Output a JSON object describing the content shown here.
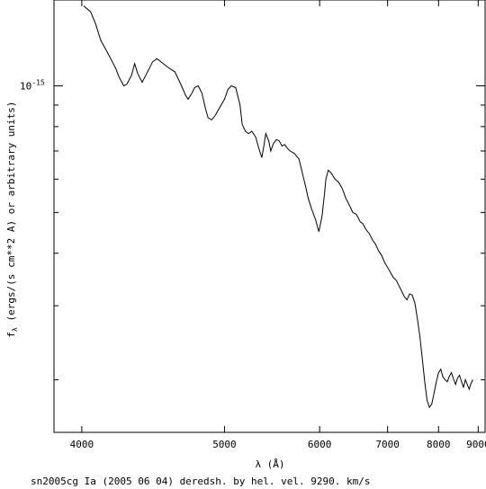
{
  "chart_data": {
    "type": "line",
    "title": "sn2005cg Ia (2005 06 04) deredsh. by hel. vel.  9290. km/s",
    "xlabel": "λ (Å)",
    "ylabel": "f_λ (ergs/(s cm**2 A) or arbitrary units)",
    "x_scale": "reciprocal",
    "y_scale": "log",
    "xlim": [
      3850,
      9200
    ],
    "ylim": [
      1.5e-16,
      1.6e-15
    ],
    "x_ticks": [
      {
        "value": 4000,
        "label": "4000"
      },
      {
        "value": 5000,
        "label": "5000"
      },
      {
        "value": 6000,
        "label": "6000"
      },
      {
        "value": 7000,
        "label": "7000"
      },
      {
        "value": 8000,
        "label": "8000"
      },
      {
        "value": 9000,
        "label": "9000"
      }
    ],
    "y_major_ticks": [
      {
        "value": 1e-15,
        "label": "10^-15"
      }
    ],
    "y_minor_ticks": [
      2e-16,
      3e-16,
      4e-16,
      5e-16,
      6e-16,
      7e-16,
      8e-16,
      9e-16
    ],
    "grid": false,
    "series": [
      {
        "name": "",
        "color": "#000000",
        "x": [
          4010,
          4050,
          4080,
          4110,
          4150,
          4200,
          4220,
          4250,
          4270,
          4300,
          4320,
          4340,
          4370,
          4400,
          4440,
          4470,
          4500,
          4530,
          4560,
          4600,
          4650,
          4680,
          4700,
          4730,
          4750,
          4780,
          4810,
          4840,
          4860,
          4890,
          4920,
          4960,
          5000,
          5030,
          5060,
          5100,
          5140,
          5160,
          5190,
          5220,
          5250,
          5290,
          5320,
          5350,
          5370,
          5390,
          5420,
          5440,
          5470,
          5500,
          5530,
          5560,
          5590,
          5620,
          5650,
          5700,
          5750,
          5790,
          5830,
          5860,
          5900,
          5950,
          5990,
          6030,
          6060,
          6080,
          6110,
          6150,
          6200,
          6250,
          6300,
          6350,
          6400,
          6450,
          6500,
          6530,
          6560,
          6600,
          6650,
          6700,
          6750,
          6800,
          6850,
          6900,
          6950,
          7000,
          7050,
          7100,
          7150,
          7200,
          7250,
          7300,
          7350,
          7400,
          7450,
          7500,
          7550,
          7600,
          7650,
          7700,
          7750,
          7800,
          7850,
          7900,
          7950,
          8000,
          8050,
          8100,
          8150,
          8200,
          8250,
          8300,
          8350,
          8400,
          8450,
          8500,
          8550,
          8600,
          8650,
          8700,
          8750,
          8800,
          8850
        ],
        "y": [
          1.55e-15,
          1.5e-15,
          1.4e-15,
          1.28e-15,
          1.2e-15,
          1.1e-15,
          1.05e-15,
          1e-15,
          1.01e-15,
          1.06e-15,
          1.13e-15,
          1.07e-15,
          1.02e-15,
          1.07e-15,
          1.14e-15,
          1.16e-15,
          1.14e-15,
          1.12e-15,
          1.1e-15,
          1.08e-15,
          1e-15,
          9.5e-16,
          9.3e-16,
          9.6e-16,
          9.9e-16,
          1e-15,
          9.6e-16,
          8.8e-16,
          8.4e-16,
          8.3e-16,
          8.5e-16,
          8.9e-16,
          9.3e-16,
          9.8e-16,
          1e-15,
          9.9e-16,
          9e-16,
          8.1e-16,
          7.8e-16,
          7.7e-16,
          7.8e-16,
          7.55e-16,
          7.1e-16,
          6.75e-16,
          7.2e-16,
          7.7e-16,
          7.4e-16,
          7e-16,
          7.3e-16,
          7.45e-16,
          7.4e-16,
          7.2e-16,
          7.25e-16,
          7.1e-16,
          7e-16,
          6.9e-16,
          6.7e-16,
          6.2e-16,
          5.75e-16,
          5.4e-16,
          5.1e-16,
          4.8e-16,
          4.5e-16,
          4.9e-16,
          5.5e-16,
          6e-16,
          6.3e-16,
          6.2e-16,
          6e-16,
          5.9e-16,
          5.7e-16,
          5.4e-16,
          5.2e-16,
          5e-16,
          4.95e-16,
          4.85e-16,
          4.75e-16,
          4.7e-16,
          4.55e-16,
          4.45e-16,
          4.3e-16,
          4.2e-16,
          4.05e-16,
          3.95e-16,
          3.8e-16,
          3.7e-16,
          3.6e-16,
          3.5e-16,
          3.45e-16,
          3.35e-16,
          3.25e-16,
          3.15e-16,
          3.1e-16,
          3.2e-16,
          3.18e-16,
          3.05e-16,
          2.8e-16,
          2.55e-16,
          2.25e-16,
          1.98e-16,
          1.79e-16,
          1.72e-16,
          1.75e-16,
          1.86e-16,
          1.98e-16,
          2.08e-16,
          2.12e-16,
          2.03e-16,
          2e-16,
          1.98e-16,
          2.04e-16,
          2.08e-16,
          2.01e-16,
          1.95e-16,
          2.02e-16,
          2.05e-16,
          1.98e-16,
          1.92e-16,
          2e-16,
          1.95e-16,
          1.9e-16,
          1.96e-16,
          2e-16
        ]
      }
    ]
  }
}
